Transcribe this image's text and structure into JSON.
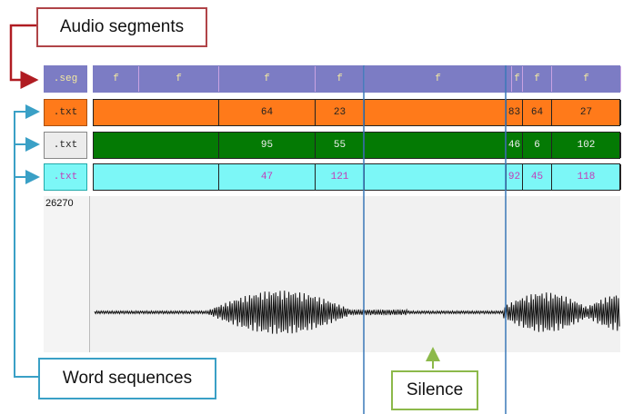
{
  "callouts": {
    "audio_segments": "Audio segments",
    "word_sequences": "Word sequences",
    "silence": "Silence"
  },
  "tracks": {
    "seg": {
      "label": ".seg",
      "cells": [
        {
          "text": "f"
        },
        {
          "text": "f"
        },
        {
          "text": "f"
        },
        {
          "text": "f"
        },
        {
          "text": "f"
        },
        {
          "text": "f"
        },
        {
          "text": "f"
        },
        {
          "text": "f"
        }
      ]
    },
    "txt1": {
      "label": ".txt",
      "cells": [
        {
          "text": ""
        },
        {
          "text": "64"
        },
        {
          "text": "23"
        },
        {
          "text": ""
        },
        {
          "text": "83"
        },
        {
          "text": "64"
        },
        {
          "text": "27"
        }
      ]
    },
    "txt2": {
      "label": ".txt",
      "cells": [
        {
          "text": ""
        },
        {
          "text": "95"
        },
        {
          "text": "55"
        },
        {
          "text": ""
        },
        {
          "text": "46"
        },
        {
          "text": "6"
        },
        {
          "text": "102"
        }
      ]
    },
    "txt3": {
      "label": ".txt",
      "cells": [
        {
          "text": ""
        },
        {
          "text": "47"
        },
        {
          "text": "121"
        },
        {
          "text": ""
        },
        {
          "text": "92"
        },
        {
          "text": "45"
        },
        {
          "text": "118"
        }
      ]
    }
  },
  "waveform": {
    "amplitude_label": "26270"
  },
  "colors": {
    "seg_bg": "#7c7cc4",
    "txt1_bg": "#ff7a1a",
    "txt2_bg": "#047a04",
    "txt3_bg": "#7cf7f7",
    "audio_callout_border": "#b04448",
    "words_callout_border": "#3aa0c6",
    "silence_callout_border": "#8cb94a",
    "divider_line": "#3a78b8"
  }
}
